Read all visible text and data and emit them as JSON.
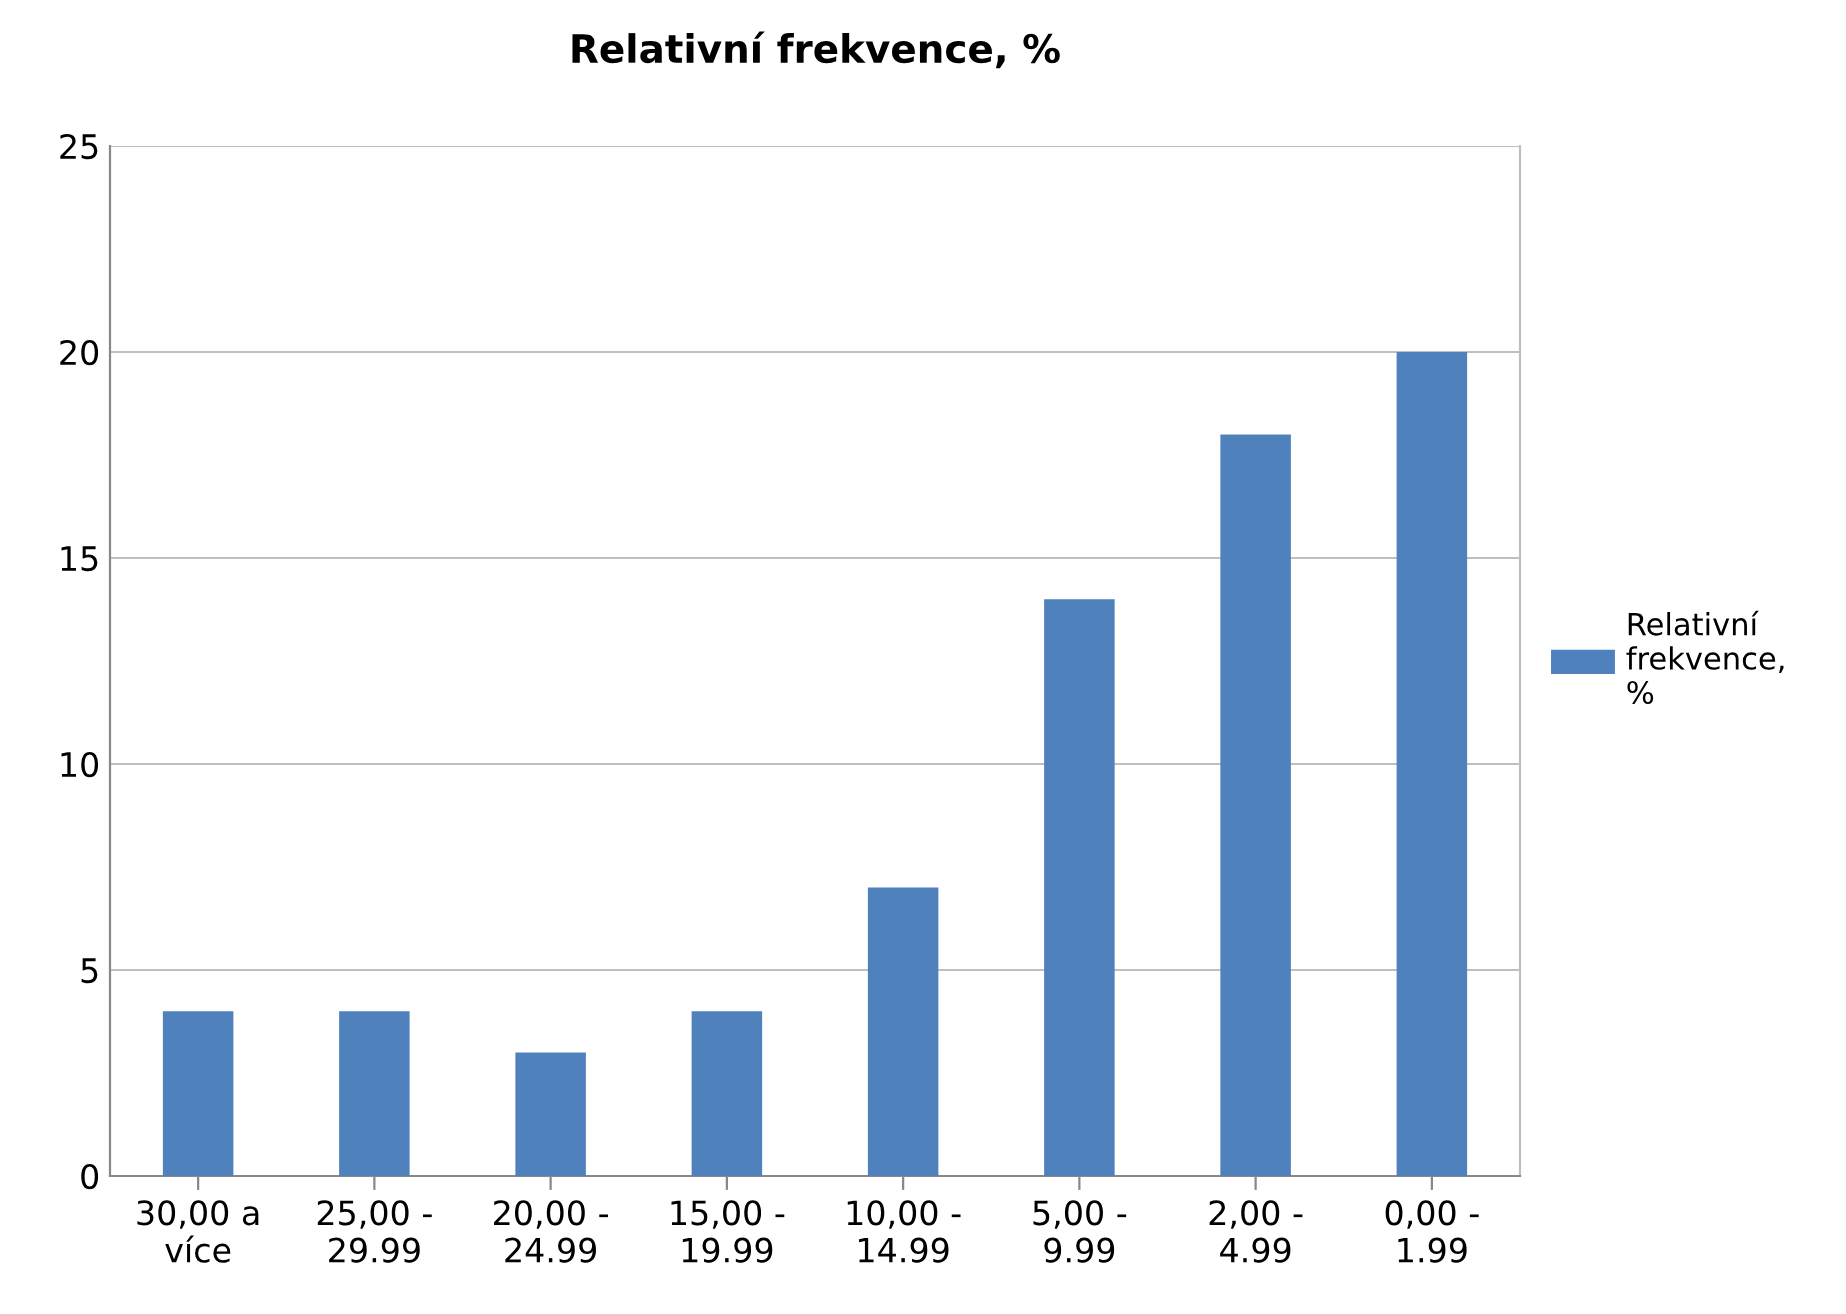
{
  "chart_data": {
    "type": "bar",
    "title": "Relativní frekvence, %",
    "categories": [
      "30,00 a\nvíce",
      "25,00 -\n29.99",
      "20,00 -\n24.99",
      "15,00 -\n19.99",
      "10,00 -\n14.99",
      "5,00 -\n9.99",
      "2,00 -\n4.99",
      "0,00 -\n1.99"
    ],
    "series": [
      {
        "name": "Relativní\nfrekvence,\n%",
        "color": "#4f81bd",
        "values": [
          4,
          4,
          3,
          4,
          7,
          14,
          18,
          20
        ]
      }
    ],
    "ylim": [
      0,
      25
    ],
    "yticks": [
      0,
      5,
      10,
      15,
      20,
      25
    ],
    "grid": "y",
    "legend": "right"
  }
}
